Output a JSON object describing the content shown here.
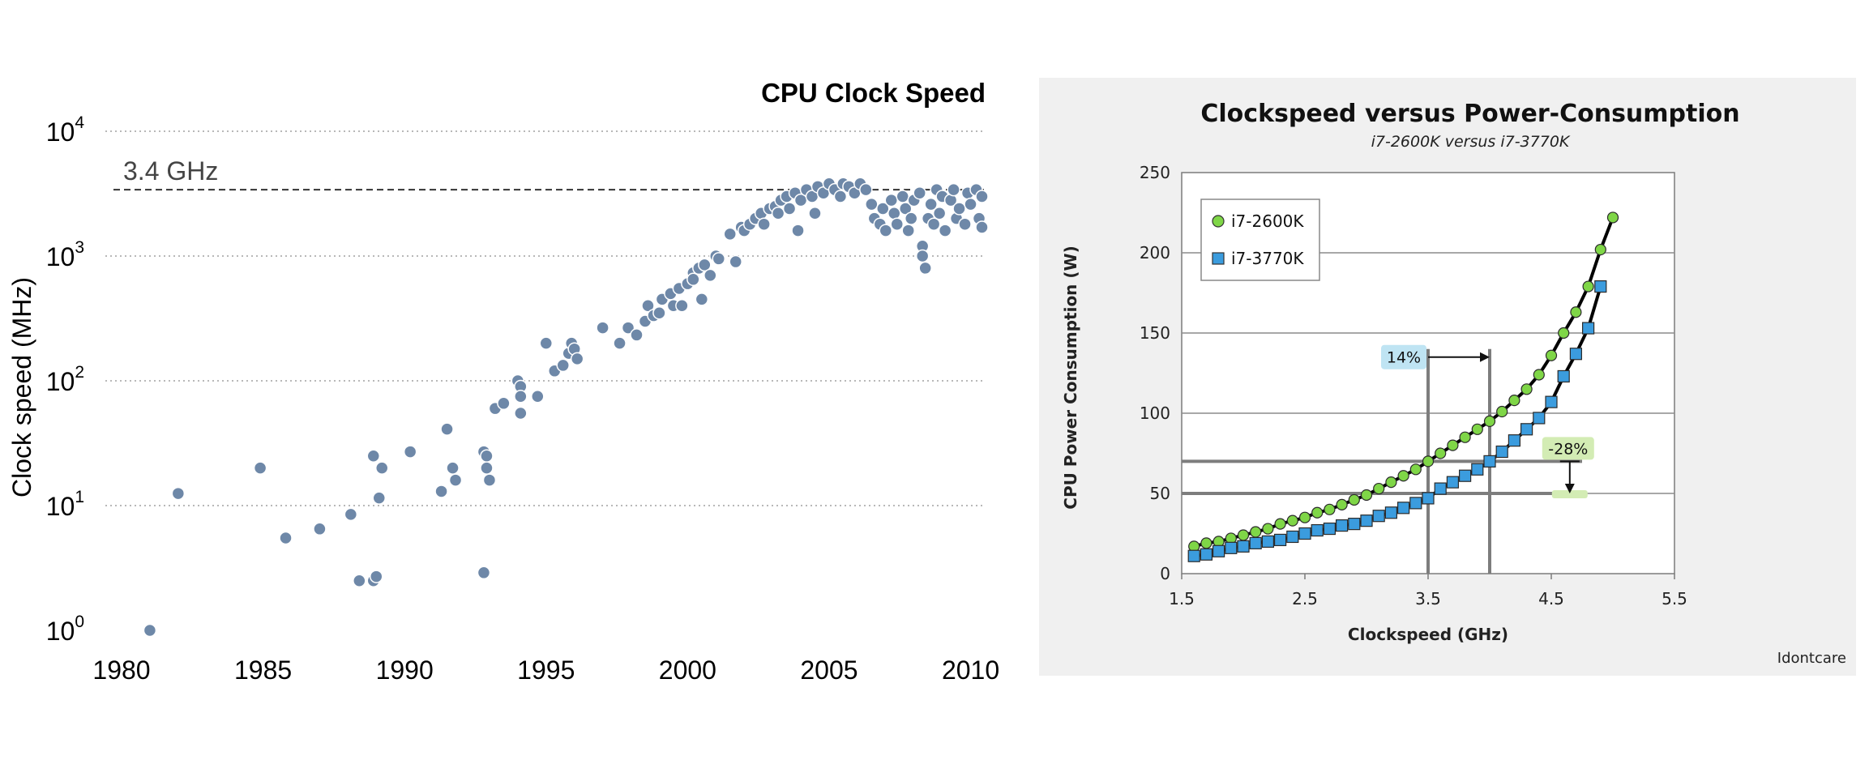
{
  "chart_data": [
    {
      "type": "scatter",
      "title": "CPU Clock Speed",
      "xlabel": "",
      "ylabel": "Clock speed (MHz)",
      "y_scale": "log",
      "xlim": [
        1980,
        2010.5
      ],
      "ylim": [
        1,
        10000
      ],
      "x_ticks": [
        "1980",
        "1985",
        "1990",
        "1995",
        "2000",
        "2005",
        "2010"
      ],
      "y_ticks": [
        {
          "base": "10",
          "exp": "0"
        },
        {
          "base": "10",
          "exp": "1"
        },
        {
          "base": "10",
          "exp": "2"
        },
        {
          "base": "10",
          "exp": "3"
        },
        {
          "base": "10",
          "exp": "4"
        }
      ],
      "grid": "horizontal-dotted",
      "point_color": "#6e88a8",
      "reference_line": {
        "y": 3400,
        "label": "3.4 GHz",
        "style": "dashed"
      },
      "points": [
        [
          1981.0,
          1.0
        ],
        [
          1982.0,
          12.5
        ],
        [
          1984.9,
          20
        ],
        [
          1985.8,
          5.5
        ],
        [
          1987.0,
          6.5
        ],
        [
          1988.1,
          8.5
        ],
        [
          1988.4,
          2.5
        ],
        [
          1988.9,
          25
        ],
        [
          1988.9,
          2.5
        ],
        [
          1989.0,
          2.7
        ],
        [
          1989.1,
          11.5
        ],
        [
          1989.2,
          20
        ],
        [
          1990.2,
          27
        ],
        [
          1991.3,
          13
        ],
        [
          1991.5,
          41
        ],
        [
          1991.7,
          20
        ],
        [
          1991.8,
          16
        ],
        [
          1992.8,
          27
        ],
        [
          1992.8,
          2.9
        ],
        [
          1992.9,
          25
        ],
        [
          1992.9,
          20
        ],
        [
          1993.0,
          16
        ],
        [
          1993.2,
          60
        ],
        [
          1993.5,
          66
        ],
        [
          1994.0,
          100
        ],
        [
          1994.1,
          90
        ],
        [
          1994.1,
          75
        ],
        [
          1994.1,
          55
        ],
        [
          1994.7,
          75
        ],
        [
          1995.0,
          200
        ],
        [
          1995.3,
          120
        ],
        [
          1995.6,
          133
        ],
        [
          1995.8,
          166
        ],
        [
          1995.9,
          200
        ],
        [
          1996.0,
          180
        ],
        [
          1996.1,
          150
        ],
        [
          1997.0,
          266
        ],
        [
          1997.6,
          200
        ],
        [
          1997.9,
          266
        ],
        [
          1998.2,
          233
        ],
        [
          1998.5,
          300
        ],
        [
          1998.6,
          400
        ],
        [
          1998.8,
          333
        ],
        [
          1999.0,
          350
        ],
        [
          1999.1,
          450
        ],
        [
          1999.4,
          500
        ],
        [
          1999.5,
          400
        ],
        [
          1999.7,
          550
        ],
        [
          1999.8,
          400
        ],
        [
          2000.0,
          600
        ],
        [
          2000.2,
          733
        ],
        [
          2000.2,
          650
        ],
        [
          2000.4,
          800
        ],
        [
          2000.5,
          450
        ],
        [
          2000.6,
          850
        ],
        [
          2000.8,
          700
        ],
        [
          2001.0,
          1000
        ],
        [
          2001.1,
          950
        ],
        [
          2001.5,
          1500
        ],
        [
          2001.7,
          900
        ],
        [
          2001.9,
          1700
        ],
        [
          2002.0,
          1600
        ],
        [
          2002.2,
          1800
        ],
        [
          2002.4,
          2000
        ],
        [
          2002.6,
          2200
        ],
        [
          2002.7,
          1800
        ],
        [
          2002.9,
          2400
        ],
        [
          2003.1,
          2500
        ],
        [
          2003.2,
          2200
        ],
        [
          2003.3,
          2800
        ],
        [
          2003.5,
          3000
        ],
        [
          2003.6,
          2400
        ],
        [
          2003.8,
          3200
        ],
        [
          2003.9,
          1600
        ],
        [
          2004.0,
          2800
        ],
        [
          2004.2,
          3400
        ],
        [
          2004.4,
          3000
        ],
        [
          2004.5,
          2200
        ],
        [
          2004.6,
          3600
        ],
        [
          2004.8,
          3200
        ],
        [
          2005.0,
          3800
        ],
        [
          2005.2,
          3400
        ],
        [
          2005.4,
          3000
        ],
        [
          2005.5,
          3800
        ],
        [
          2005.7,
          3600
        ],
        [
          2005.9,
          3200
        ],
        [
          2006.1,
          3800
        ],
        [
          2006.3,
          3400
        ],
        [
          2006.5,
          2600
        ],
        [
          2006.6,
          2000
        ],
        [
          2006.8,
          1800
        ],
        [
          2006.9,
          2400
        ],
        [
          2007.0,
          1600
        ],
        [
          2007.2,
          2800
        ],
        [
          2007.3,
          2200
        ],
        [
          2007.4,
          1800
        ],
        [
          2007.6,
          3000
        ],
        [
          2007.7,
          2400
        ],
        [
          2007.8,
          1600
        ],
        [
          2007.9,
          2000
        ],
        [
          2008.0,
          2800
        ],
        [
          2008.2,
          3200
        ],
        [
          2008.3,
          1200
        ],
        [
          2008.3,
          1000
        ],
        [
          2008.4,
          800
        ],
        [
          2008.5,
          2000
        ],
        [
          2008.6,
          2600
        ],
        [
          2008.7,
          1800
        ],
        [
          2008.8,
          3400
        ],
        [
          2008.9,
          2200
        ],
        [
          2009.0,
          3000
        ],
        [
          2009.1,
          1600
        ],
        [
          2009.3,
          2800
        ],
        [
          2009.4,
          3400
        ],
        [
          2009.5,
          2000
        ],
        [
          2009.6,
          2400
        ],
        [
          2009.8,
          1800
        ],
        [
          2009.9,
          3200
        ],
        [
          2010.0,
          2600
        ],
        [
          2010.2,
          3400
        ],
        [
          2010.3,
          2000
        ],
        [
          2010.4,
          1700
        ],
        [
          2010.4,
          3000
        ]
      ]
    },
    {
      "type": "line",
      "title": "Clockspeed versus Power-Consumption",
      "subtitle": "i7-2600K versus i7-3770K",
      "xlabel": "Clockspeed (GHz)",
      "ylabel": "CPU Power Consumption (W)",
      "xlim": [
        1.5,
        5.5
      ],
      "ylim": [
        0,
        250
      ],
      "x_ticks": [
        "1.5",
        "2.5",
        "3.5",
        "4.5",
        "5.5"
      ],
      "y_ticks": [
        "0",
        "50",
        "100",
        "150",
        "200",
        "250"
      ],
      "grid": "horizontal",
      "legend": "top-left",
      "x": [
        1.6,
        1.7,
        1.8,
        1.9,
        2.0,
        2.1,
        2.2,
        2.3,
        2.4,
        2.5,
        2.6,
        2.7,
        2.8,
        2.9,
        3.0,
        3.1,
        3.2,
        3.3,
        3.4,
        3.5,
        3.6,
        3.7,
        3.8,
        3.9,
        4.0,
        4.1,
        4.2,
        4.3,
        4.4,
        4.5,
        4.6,
        4.7,
        4.8,
        4.9,
        5.0
      ],
      "series": [
        {
          "name": "i7-2600K",
          "color": "#7fd647",
          "marker": "circle",
          "values": [
            17,
            19,
            20,
            22,
            24,
            26,
            28,
            31,
            33,
            35,
            38,
            40,
            43,
            46,
            49,
            53,
            57,
            61,
            65,
            70,
            75,
            80,
            85,
            90,
            95,
            101,
            108,
            115,
            124,
            136,
            150,
            163,
            179,
            202,
            222
          ]
        },
        {
          "name": "i7-3770K",
          "color": "#3b9cde",
          "marker": "square",
          "values": [
            11,
            12,
            14,
            16,
            17,
            19,
            20,
            21,
            23,
            25,
            27,
            28,
            30,
            31,
            33,
            36,
            38,
            41,
            44,
            47,
            53,
            57,
            61,
            65,
            70,
            76,
            83,
            90,
            97,
            107,
            123,
            137,
            153,
            179,
            null
          ]
        }
      ],
      "annotations": [
        {
          "text": "14%",
          "from_x": 3.5,
          "to_x": 4.0,
          "y": 135,
          "color": "#bfe4f3"
        },
        {
          "text": "-28%",
          "x": 4.65,
          "from_y": 70,
          "to_y": 50,
          "color": "#d3ecb4"
        }
      ],
      "guides": {
        "x": [
          3.5,
          4.0
        ],
        "y": [
          70,
          50
        ]
      },
      "watermark": "Idontcare"
    }
  ]
}
